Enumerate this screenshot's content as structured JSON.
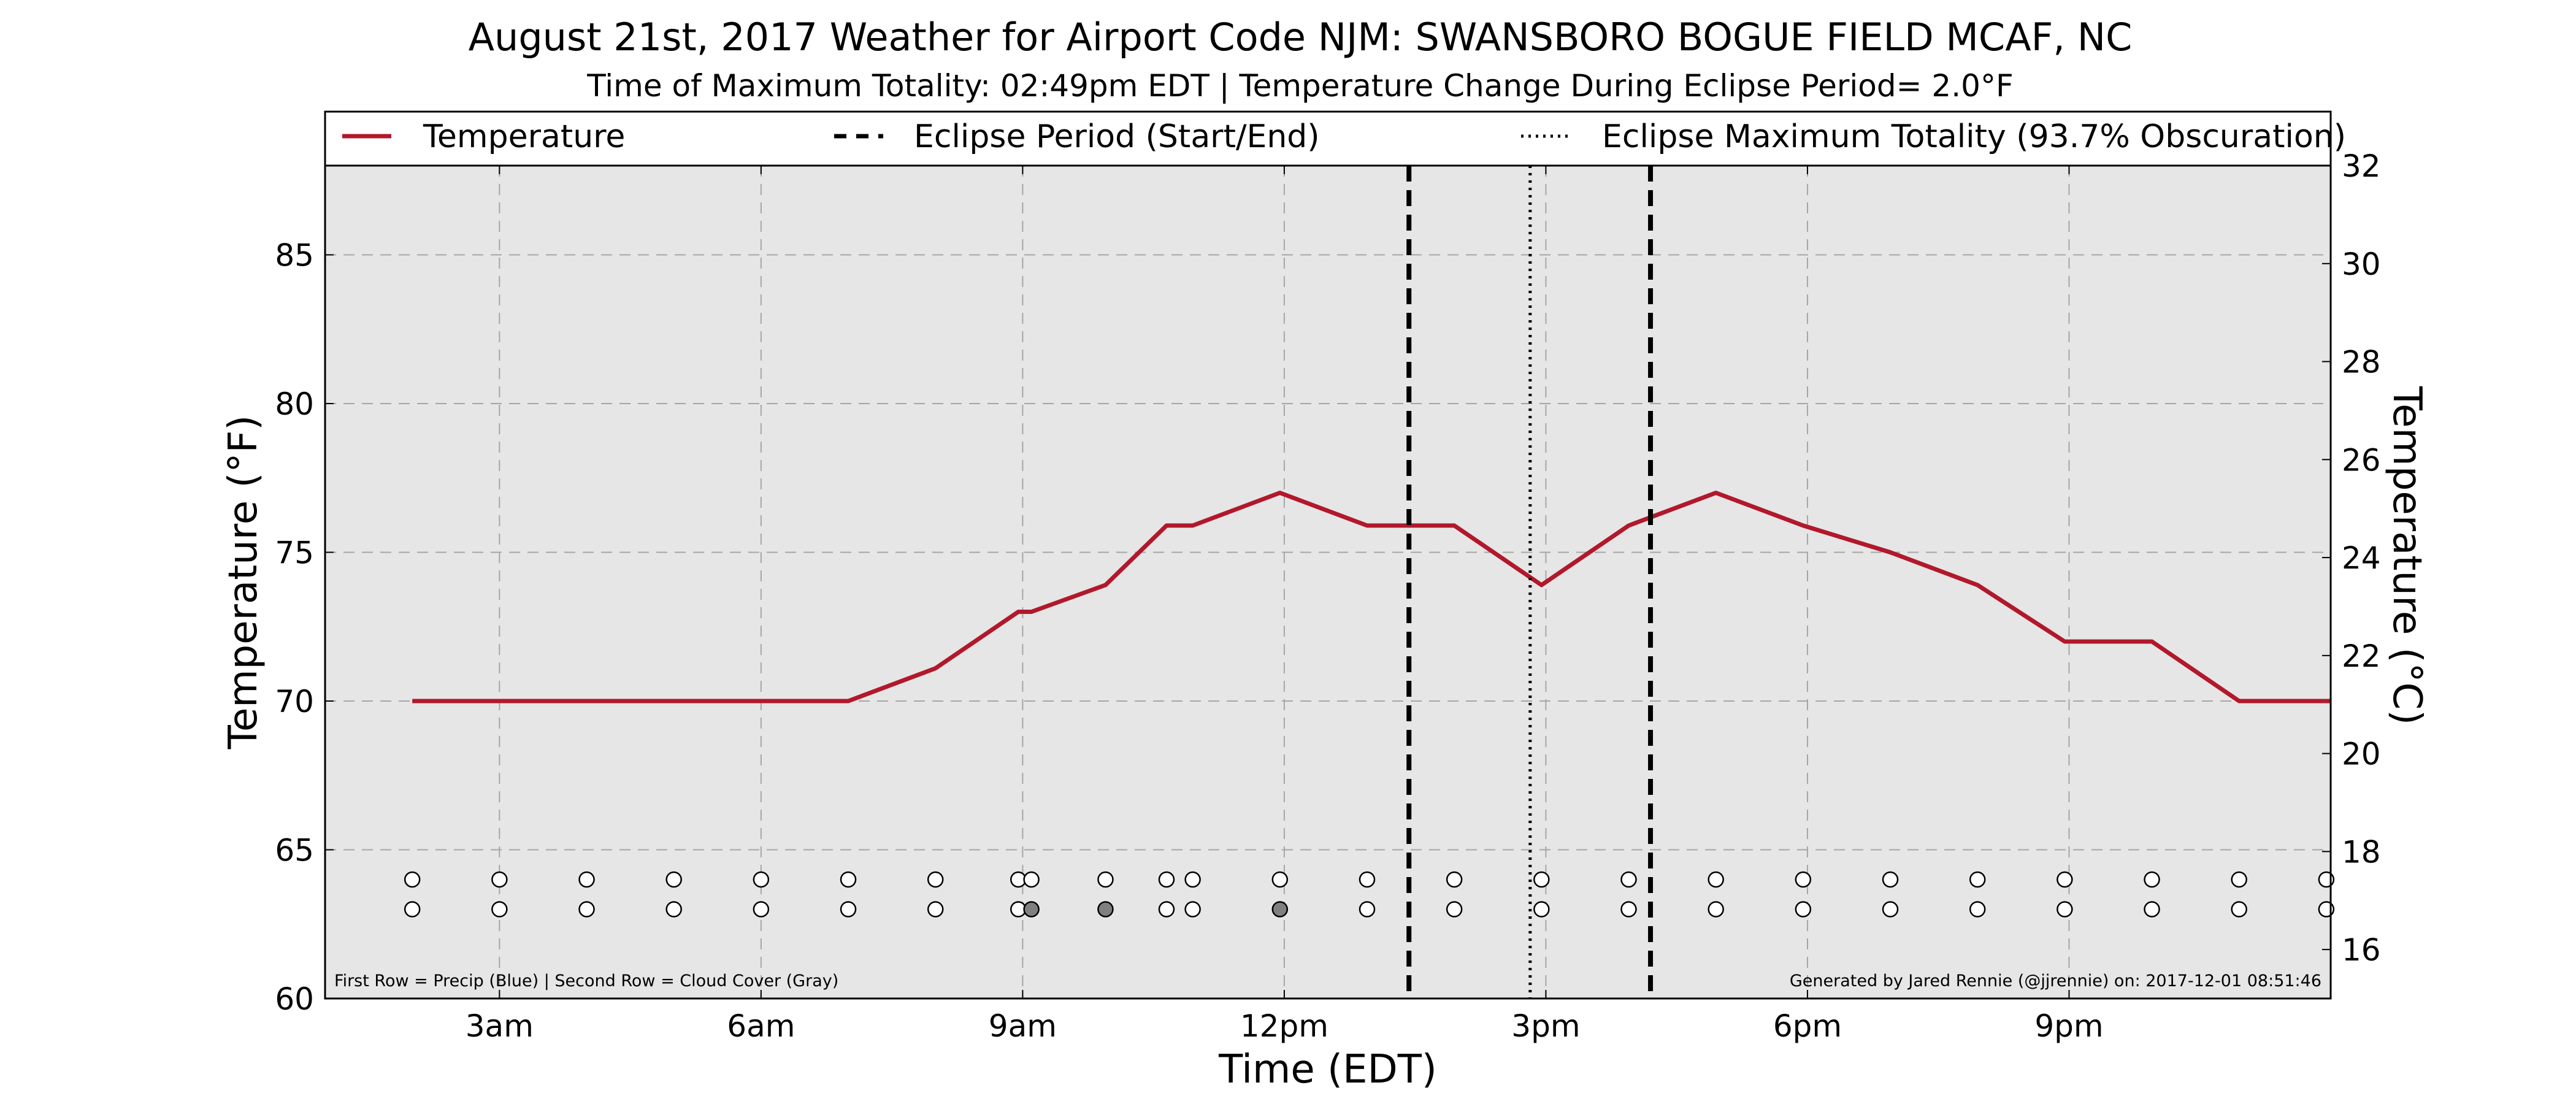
{
  "chart_data": {
    "type": "line",
    "title": "August 21st, 2017 Weather for Airport Code NJM: SWANSBORO BOGUE FIELD MCAF, NC",
    "subtitle": "Time of Maximum Totality: 02:49pm EDT | Temperature Change During Eclipse Period= 2.0°F",
    "xlabel": "Time (EDT)",
    "ylabel": "Temperature (°F)",
    "ylabel_right": "Temperature (°C)",
    "xlim": [
      1.0,
      24.0
    ],
    "ylim": [
      60,
      88
    ],
    "ylim_right": [
      15.0,
      32.0
    ],
    "x_ticks": [
      {
        "value": 3,
        "label": "3am"
      },
      {
        "value": 6,
        "label": "6am"
      },
      {
        "value": 9,
        "label": "9am"
      },
      {
        "value": 12,
        "label": "12pm"
      },
      {
        "value": 15,
        "label": "3pm"
      },
      {
        "value": 18,
        "label": "6pm"
      },
      {
        "value": 21,
        "label": "9pm"
      }
    ],
    "y_ticks": [
      {
        "value": 60,
        "label": "60"
      },
      {
        "value": 65,
        "label": "65"
      },
      {
        "value": 70,
        "label": "70"
      },
      {
        "value": 75,
        "label": "75"
      },
      {
        "value": 80,
        "label": "80"
      },
      {
        "value": 85,
        "label": "85"
      }
    ],
    "y_ticks_right": [
      {
        "value": 16,
        "label": "16"
      },
      {
        "value": 18,
        "label": "18"
      },
      {
        "value": 20,
        "label": "20"
      },
      {
        "value": 22,
        "label": "22"
      },
      {
        "value": 24,
        "label": "24"
      },
      {
        "value": 26,
        "label": "26"
      },
      {
        "value": 28,
        "label": "28"
      },
      {
        "value": 30,
        "label": "30"
      },
      {
        "value": 32,
        "label": "32"
      }
    ],
    "grid": true,
    "series": [
      {
        "name": "Temperature",
        "color": "#b2182b",
        "x": [
          2.0,
          7.0,
          8.0,
          8.95,
          9.1,
          9.95,
          10.65,
          10.95,
          11.95,
          12.95,
          13.95,
          14.95,
          15.95,
          16.95,
          17.95,
          18.95,
          19.95,
          20.95,
          21.95,
          22.95,
          24.0
        ],
        "y": [
          70,
          70,
          71.1,
          73,
          73,
          73.9,
          75.9,
          75.9,
          77,
          75.9,
          75.9,
          73.9,
          75.9,
          77,
          75.9,
          75,
          73.9,
          72,
          72,
          70,
          70
        ]
      }
    ],
    "eclipse_period": {
      "label": "Eclipse Period (Start/End)",
      "start": 13.43,
      "end": 16.2,
      "color": "#000000"
    },
    "max_totality": {
      "label": "Eclipse Maximum Totality (93.7% Obscuration)",
      "time": 14.82,
      "color": "#000000"
    },
    "precip_row": {
      "y": 64,
      "times": [
        2.0,
        3.0,
        4.0,
        5.0,
        6.0,
        7.0,
        8.0,
        8.95,
        9.1,
        9.95,
        10.65,
        10.95,
        11.95,
        12.95,
        13.95,
        14.95,
        15.95,
        16.95,
        17.95,
        18.95,
        19.95,
        20.95,
        21.95,
        22.95,
        23.95
      ],
      "fills": [
        "#ffffff",
        "#ffffff",
        "#ffffff",
        "#ffffff",
        "#ffffff",
        "#ffffff",
        "#ffffff",
        "#ffffff",
        "#ffffff",
        "#ffffff",
        "#ffffff",
        "#ffffff",
        "#ffffff",
        "#ffffff",
        "#ffffff",
        "#ffffff",
        "#ffffff",
        "#ffffff",
        "#ffffff",
        "#ffffff",
        "#ffffff",
        "#ffffff",
        "#ffffff",
        "#ffffff",
        "#ffffff"
      ]
    },
    "cloud_row": {
      "y": 63,
      "times": [
        2.0,
        3.0,
        4.0,
        5.0,
        6.0,
        7.0,
        8.0,
        8.95,
        9.1,
        9.95,
        10.65,
        10.95,
        11.95,
        12.95,
        13.95,
        14.95,
        15.95,
        16.95,
        17.95,
        18.95,
        19.95,
        20.95,
        21.95,
        22.95,
        23.95
      ],
      "fills": [
        "#ffffff",
        "#ffffff",
        "#ffffff",
        "#ffffff",
        "#ffffff",
        "#ffffff",
        "#ffffff",
        "#ffffff",
        "#808080",
        "#808080",
        "#ffffff",
        "#ffffff",
        "#808080",
        "#ffffff",
        "#ffffff",
        "#ffffff",
        "#ffffff",
        "#ffffff",
        "#ffffff",
        "#ffffff",
        "#ffffff",
        "#ffffff",
        "#ffffff",
        "#ffffff",
        "#ffffff"
      ]
    },
    "legend": {
      "placement": "top",
      "entries": [
        "Temperature",
        "Eclipse Period (Start/End)",
        "Eclipse Maximum Totality (93.7% Obscuration)"
      ]
    },
    "footnote_left": "First Row = Precip (Blue) | Second Row = Cloud Cover (Gray)",
    "footnote_right": "Generated by Jared Rennie (@jjrennie) on: 2017-12-01 08:51:46",
    "colors": {
      "plot_background": "#e6e6e6",
      "grid": "#a6a6a6",
      "temperature": "#b2182b"
    }
  }
}
